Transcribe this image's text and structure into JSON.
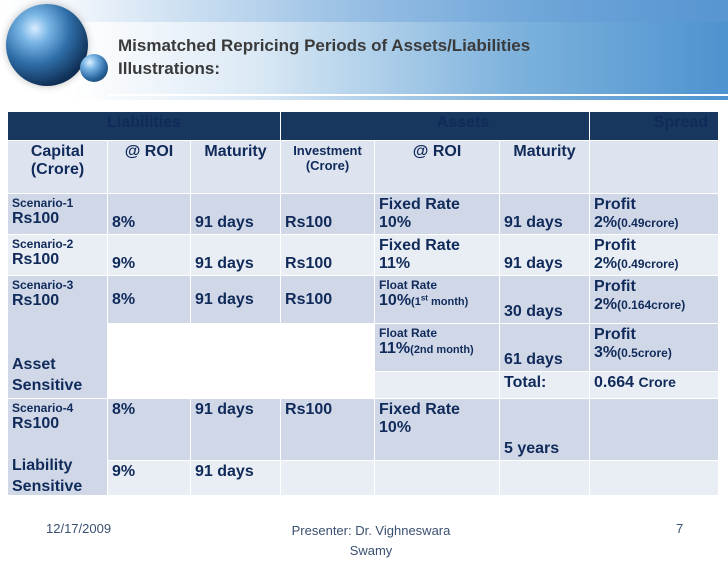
{
  "slide": {
    "title_line1": "Mismatched Repricing Periods of Assets/Liabilities",
    "title_line2": "Illustrations:"
  },
  "table": {
    "headers": {
      "liabilities": "Liabilities",
      "assets": "Assets",
      "spread": "Spread"
    },
    "subheaders": {
      "capital": "Capital (Crore)",
      "roi": "@ ROI",
      "maturity": "Maturity",
      "investment": "Investment (Crore)",
      "asset_roi": "@ ROI",
      "asset_maturity": "Maturity"
    },
    "scenario1": {
      "label": "Scenario-1",
      "capital": "Rs100",
      "roi": "8%",
      "maturity": "91 days",
      "investment": "Rs100",
      "asset_type": "Fixed Rate",
      "asset_roi": "10%",
      "asset_maturity": "91 days",
      "spread_label": "Profit",
      "spread_value": "2%",
      "spread_detail": "(0.49crore)"
    },
    "scenario2": {
      "label": "Scenario-2",
      "capital": "Rs100",
      "roi": "9%",
      "maturity": "91 days",
      "investment": "Rs100",
      "asset_type": "Fixed Rate",
      "asset_roi": "11%",
      "asset_maturity": "91 days",
      "spread_label": "Profit",
      "spread_value": "2%",
      "spread_detail": "(0.49crore)"
    },
    "scenario3": {
      "label": "Scenario-3",
      "capital": "Rs100",
      "roi": "8%",
      "maturity": "91 days",
      "investment": "Rs100",
      "sensitivity": "Asset Sensitive",
      "row1": {
        "asset_type": "Float Rate",
        "asset_roi": "10%",
        "asset_roi_note_pre": "(1",
        "asset_roi_note_sup": "st",
        "asset_roi_note_post": " month)",
        "asset_maturity": "30 days",
        "spread_label": "Profit",
        "spread_value": "2%",
        "spread_detail": "(0.164crore)"
      },
      "row2": {
        "asset_type": "Float Rate",
        "asset_roi": "11%",
        "asset_roi_note": "(2nd month)",
        "asset_maturity": "61 days",
        "spread_label": "Profit",
        "spread_value": "3%",
        "spread_detail": "(0.5crore)"
      },
      "total_label": "Total:",
      "total_value": "0.664",
      "total_unit": "Crore"
    },
    "scenario4": {
      "label": "Scenario-4",
      "capital": "Rs100",
      "roi": "8%",
      "maturity": "91 days",
      "investment": "Rs100",
      "asset_type": "Fixed Rate",
      "asset_roi": "10%",
      "asset_maturity": "5 years",
      "sensitivity": "Liability Sensitive",
      "row2": {
        "roi": "9%",
        "maturity": "91 days"
      }
    }
  },
  "footer": {
    "date": "12/17/2009",
    "presenter": "Presenter: Dr. Vighneswara Swamy",
    "page": "7"
  },
  "colors": {
    "header_bg": "#17375e",
    "row_a": "#d0d8e8",
    "row_b": "#e9edf4",
    "text": "#102a5a"
  }
}
